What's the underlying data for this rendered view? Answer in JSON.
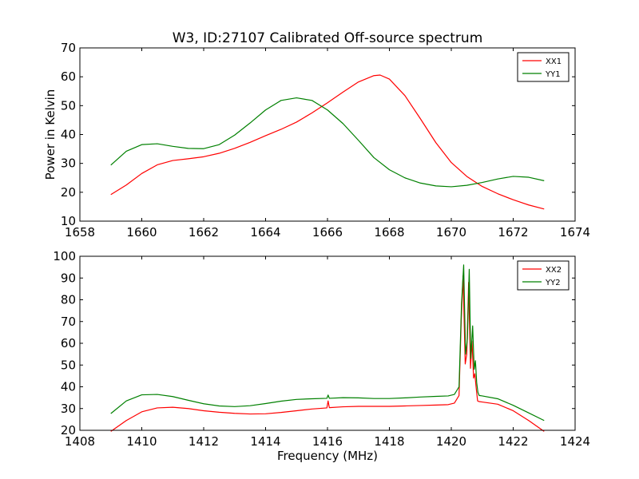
{
  "figure": {
    "title": "W3, ID:27107 Calibrated Off-source spectrum"
  },
  "chart_data": [
    {
      "type": "line",
      "title": "W3, ID:27107 Calibrated Off-source spectrum",
      "xlabel": "",
      "ylabel": "Power in Kelvin",
      "xlim": [
        1658,
        1674
      ],
      "ylim": [
        10,
        70
      ],
      "xticks": [
        "1658",
        "1660",
        "1662",
        "1664",
        "1666",
        "1668",
        "1670",
        "1672",
        "1674"
      ],
      "yticks": [
        "10",
        "20",
        "30",
        "40",
        "50",
        "60",
        "70"
      ],
      "grid": false,
      "legend_position": "top-right",
      "series": [
        {
          "name": "XX1",
          "color": "#ff0000",
          "x": [
            1659,
            1659.5,
            1660,
            1660.5,
            1661,
            1661.5,
            1662,
            1662.5,
            1663,
            1663.5,
            1664,
            1664.5,
            1665,
            1665.5,
            1666,
            1666.5,
            1667,
            1667.5,
            1667.7,
            1668,
            1668.5,
            1669,
            1669.5,
            1670,
            1670.5,
            1671,
            1671.5,
            1672,
            1672.5,
            1673
          ],
          "y": [
            19.2,
            22.5,
            26.5,
            29.5,
            31.0,
            31.6,
            32.3,
            33.5,
            35.2,
            37.3,
            39.6,
            41.8,
            44.3,
            47.5,
            51.0,
            54.7,
            58.2,
            60.4,
            60.6,
            59.2,
            53.5,
            45.5,
            37.2,
            30.3,
            25.5,
            22.0,
            19.5,
            17.4,
            15.6,
            14.2
          ]
        },
        {
          "name": "YY1",
          "color": "#008000",
          "x": [
            1659,
            1659.5,
            1660,
            1660.5,
            1661,
            1661.5,
            1662,
            1662.5,
            1663,
            1663.5,
            1664,
            1664.5,
            1665,
            1665.5,
            1666,
            1666.5,
            1667,
            1667.5,
            1668,
            1668.5,
            1669,
            1669.5,
            1670,
            1670.5,
            1671,
            1671.5,
            1672,
            1672.5,
            1673
          ],
          "y": [
            29.4,
            34.2,
            36.5,
            36.8,
            35.9,
            35.2,
            35.1,
            36.5,
            39.8,
            44.0,
            48.5,
            51.8,
            52.7,
            51.8,
            48.5,
            43.8,
            38.0,
            32.0,
            27.8,
            25.0,
            23.2,
            22.2,
            21.9,
            22.4,
            23.4,
            24.6,
            25.5,
            25.2,
            24.0
          ]
        }
      ]
    },
    {
      "type": "line",
      "title": "",
      "xlabel": "Frequency (MHz)",
      "ylabel": "",
      "xlim": [
        1408,
        1424
      ],
      "ylim": [
        20,
        100
      ],
      "xticks": [
        "1408",
        "1410",
        "1412",
        "1414",
        "1416",
        "1418",
        "1420",
        "1422",
        "1424"
      ],
      "yticks": [
        "20",
        "30",
        "40",
        "50",
        "60",
        "70",
        "80",
        "90",
        "100"
      ],
      "grid": false,
      "legend_position": "top-right",
      "series": [
        {
          "name": "XX2",
          "color": "#ff0000",
          "x": [
            1409,
            1409.5,
            1410,
            1410.5,
            1411,
            1411.5,
            1412,
            1412.5,
            1413,
            1413.5,
            1414,
            1414.5,
            1415,
            1415.5,
            1415.98,
            1416.02,
            1416.06,
            1416.5,
            1417,
            1417.5,
            1418,
            1418.5,
            1419,
            1419.5,
            1419.9,
            1420.1,
            1420.25,
            1420.32,
            1420.38,
            1420.45,
            1420.5,
            1420.56,
            1420.62,
            1420.67,
            1420.72,
            1420.76,
            1420.8,
            1420.85,
            1420.9,
            1421,
            1421.5,
            1422,
            1422.5,
            1423
          ],
          "y": [
            19.5,
            24.5,
            28.5,
            30.3,
            30.6,
            30.0,
            29.0,
            28.3,
            27.8,
            27.5,
            27.6,
            28.2,
            29.0,
            29.8,
            30.3,
            33.5,
            30.4,
            30.8,
            31.0,
            31.0,
            31.0,
            31.2,
            31.4,
            31.6,
            31.8,
            32.5,
            36.0,
            70.0,
            91.0,
            50.5,
            55.0,
            88.0,
            48.5,
            61.0,
            44.0,
            46.0,
            40.0,
            33.5,
            33.2,
            33.0,
            32.0,
            29.0,
            24.5,
            19.5
          ]
        },
        {
          "name": "YY2",
          "color": "#008000",
          "x": [
            1409,
            1409.5,
            1410,
            1410.5,
            1411,
            1411.5,
            1412,
            1412.5,
            1413,
            1413.5,
            1414,
            1414.5,
            1415,
            1415.5,
            1415.98,
            1416.02,
            1416.06,
            1416.5,
            1417,
            1417.5,
            1418,
            1418.5,
            1419,
            1419.5,
            1419.9,
            1420.1,
            1420.25,
            1420.33,
            1420.4,
            1420.46,
            1420.52,
            1420.58,
            1420.63,
            1420.69,
            1420.74,
            1420.78,
            1420.82,
            1420.86,
            1420.9,
            1421,
            1421.5,
            1422,
            1422.5,
            1423
          ],
          "y": [
            27.7,
            33.5,
            36.3,
            36.5,
            35.5,
            33.8,
            32.2,
            31.2,
            30.9,
            31.3,
            32.3,
            33.4,
            34.2,
            34.5,
            34.7,
            36.2,
            34.7,
            35.0,
            34.9,
            34.6,
            34.6,
            34.9,
            35.3,
            35.6,
            35.8,
            36.5,
            40.0,
            78.0,
            96.0,
            55.0,
            62.0,
            94.0,
            53.0,
            68.0,
            48.0,
            52.0,
            42.0,
            37.5,
            36.0,
            35.8,
            34.5,
            31.5,
            28.0,
            24.5
          ]
        }
      ]
    }
  ]
}
